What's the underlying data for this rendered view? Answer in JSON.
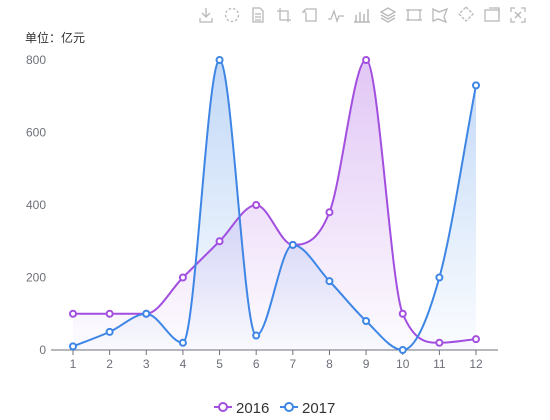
{
  "toolbox": {
    "icons": [
      "download-icon",
      "data-zoom-icon",
      "data-view-icon",
      "crop-icon",
      "restore-icon",
      "line-chart-icon",
      "bar-chart-icon",
      "stack-icon",
      "rect-select-icon",
      "polygon-select-icon",
      "keep-select-icon",
      "clear-select-icon",
      "fullscreen-icon"
    ],
    "color": "#b8b8b8"
  },
  "chart_data": {
    "type": "line",
    "smooth": true,
    "unit_label": "单位：亿元",
    "categories": [
      "1",
      "2",
      "3",
      "4",
      "5",
      "6",
      "7",
      "8",
      "9",
      "10",
      "11",
      "12"
    ],
    "ylim": [
      0,
      800
    ],
    "yticks": [
      "0",
      "200",
      "400",
      "600",
      "800"
    ],
    "grid": false,
    "legend_position": "bottom-center",
    "series": [
      {
        "name": "2016",
        "color": "#a24fe0",
        "values": [
          100,
          100,
          100,
          200,
          300,
          400,
          290,
          380,
          800,
          100,
          20,
          30
        ]
      },
      {
        "name": "2017",
        "color": "#3e86e6",
        "values": [
          10,
          50,
          100,
          20,
          800,
          40,
          290,
          190,
          80,
          0,
          200,
          730
        ]
      }
    ]
  }
}
